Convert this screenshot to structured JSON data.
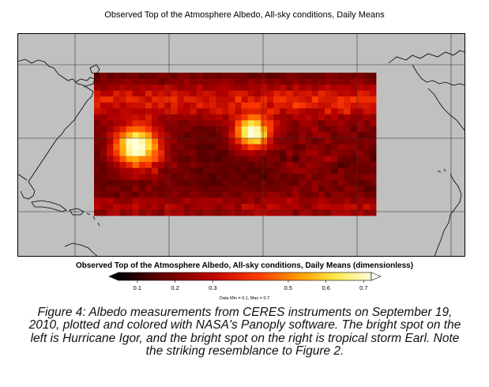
{
  "title": "Observed Top of the Atmosphere Albedo, All-sky conditions, Daily Means",
  "colorbar": {
    "title": "Observed Top of the Atmosphere Albedo, All-sky conditions, Daily Means (dimensionless)",
    "ticks": [
      "0.1",
      "0.2",
      "0.3",
      "0.5",
      "0.6",
      "0.7"
    ],
    "tick_values": [
      0.1,
      0.2,
      0.3,
      0.5,
      0.6,
      0.7
    ],
    "range_text": "Data Min = 0.1, Max = 0.7",
    "min": 0.05,
    "max": 0.72
  },
  "map": {
    "ocean_color": "#c0c0c0",
    "land_color": "#c0c0c0",
    "coast_color": "#000000",
    "grid": true,
    "data_min": 0.1,
    "data_max": 0.7,
    "features": [
      {
        "name": "Hurricane Igor",
        "peak_albedo": 0.7
      },
      {
        "name": "Tropical storm Earl",
        "peak_albedo": 0.7
      }
    ]
  },
  "caption": "Figure 4: Albedo measurements from CERES instruments on September 19, 2010, plotted and colored with NASA's Panoply software. The bright spot on the left is Hurricane Igor, and the bright spot on the right is tropical storm Earl. Note the striking resemblance to Figure 2."
}
